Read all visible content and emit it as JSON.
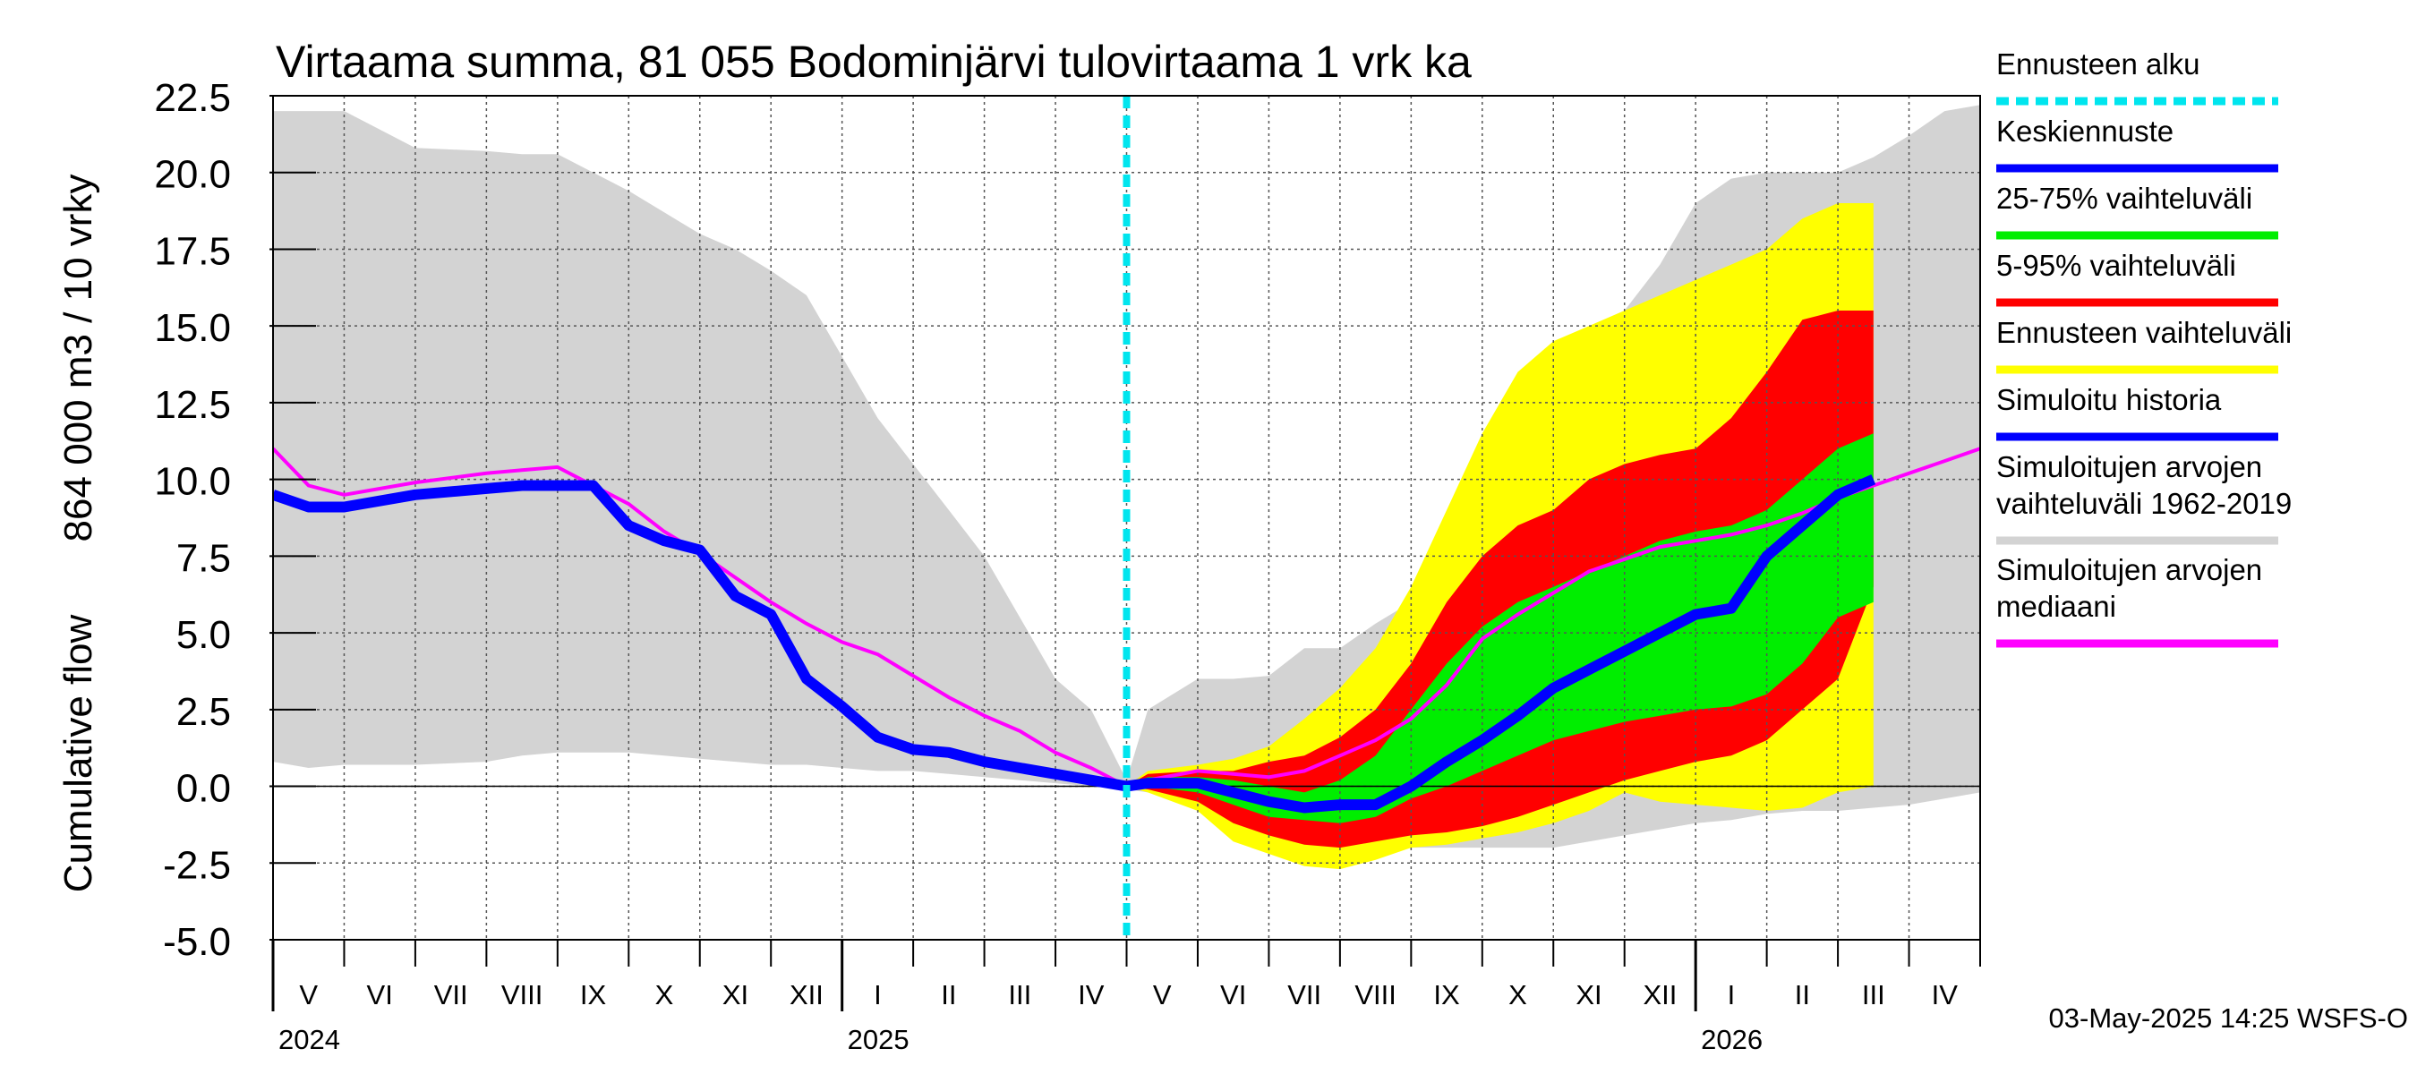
{
  "chart_data": {
    "type": "area",
    "title": "Virtaama summa, 81 055 Bodominjärvi tulovirtaama 1 vrk ka",
    "ylabel_top": "864 000 m3 / 10 vrky",
    "ylabel_bottom": "Cumulative flow",
    "ylim": [
      -5.0,
      22.5
    ],
    "yticks": [
      "22.5",
      "20.0",
      "17.5",
      "15.0",
      "12.5",
      "10.0",
      "7.5",
      "5.0",
      "2.5",
      "0.0",
      "-2.5",
      "-5.0"
    ],
    "month_labels": [
      "V",
      "VI",
      "VII",
      "VIII",
      "IX",
      "X",
      "XI",
      "XII",
      "I",
      "II",
      "III",
      "IV",
      "V",
      "VI",
      "VII",
      "VIII",
      "IX",
      "X",
      "XI",
      "XII",
      "I",
      "II",
      "III",
      "IV"
    ],
    "year_labels": [
      "2024",
      "2025",
      "2026"
    ],
    "footer": "03-May-2025 14:25 WSFS-O",
    "forecast_start_month": 12,
    "grid": true,
    "legend": [
      {
        "label": "Ennusteen alku",
        "color": "#00e5ee",
        "style": "dashed"
      },
      {
        "label": "Keskiennuste",
        "color": "#0000ff"
      },
      {
        "label": "25-75% vaihteluväli",
        "color": "#00ee00"
      },
      {
        "label": "5-95% vaihteluväli",
        "color": "#ff0000"
      },
      {
        "label": "Ennusteen vaihteluväli",
        "color": "#ffff00"
      },
      {
        "label": "Simuloitu historia",
        "color": "#0000ff"
      },
      {
        "label": "Simuloitujen arvojen vaihteluväli 1962-2019",
        "color": "#d3d3d3"
      },
      {
        "label": "Simuloitujen arvojen mediaani",
        "color": "#ff00ff"
      }
    ],
    "x_months": [
      0,
      0.5,
      1,
      2,
      3,
      3.5,
      4,
      4.5,
      5,
      5.5,
      6,
      6.5,
      7,
      7.5,
      8,
      8.5,
      9,
      9.5,
      10,
      10.5,
      11,
      11.5,
      12,
      12.3,
      13,
      13.5,
      14,
      14.5,
      15,
      15.5,
      16,
      16.5,
      17,
      17.5,
      18,
      18.5,
      19,
      19.5,
      20,
      20.5,
      21,
      21.5,
      22,
      22.5,
      23,
      23.5,
      24
    ],
    "history_band_upper": [
      22.0,
      22.0,
      22.0,
      20.8,
      20.7,
      20.6,
      20.6,
      20.0,
      19.4,
      18.7,
      18.0,
      17.5,
      16.8,
      16.0,
      14.0,
      12.0,
      10.5,
      9.0,
      7.5,
      5.5,
      3.5,
      2.5,
      0.2,
      2.5,
      3.5,
      3.5,
      3.6,
      4.5,
      4.5,
      5.3,
      6.0,
      7.0,
      8.5,
      11.0,
      13.5,
      14.2,
      15.5,
      17.0,
      19.0,
      19.8,
      20.0,
      20.0,
      20.0,
      20.5,
      21.2,
      22.0,
      22.2
    ],
    "history_band_lower": [
      0.8,
      0.6,
      0.7,
      0.7,
      0.8,
      1.0,
      1.1,
      1.1,
      1.1,
      1.0,
      0.9,
      0.8,
      0.7,
      0.7,
      0.6,
      0.5,
      0.5,
      0.4,
      0.3,
      0.2,
      0.1,
      0.0,
      -0.1,
      -0.2,
      -0.5,
      -0.9,
      -1.3,
      -1.6,
      -1.8,
      -1.9,
      -2.0,
      -2.0,
      -2.0,
      -2.0,
      -2.0,
      -1.8,
      -1.6,
      -1.4,
      -1.2,
      -1.1,
      -0.9,
      -0.8,
      -0.8,
      -0.7,
      -0.6,
      -0.4,
      -0.2
    ],
    "history_median": [
      11.0,
      9.8,
      9.5,
      9.9,
      10.2,
      10.3,
      10.4,
      9.8,
      9.2,
      8.3,
      7.6,
      6.8,
      6.0,
      5.3,
      4.7,
      4.3,
      3.6,
      2.9,
      2.3,
      1.8,
      1.1,
      0.6,
      0.0,
      0.2,
      0.5,
      0.4,
      0.3,
      0.5,
      1.0,
      1.5,
      2.2,
      3.3,
      4.8,
      5.6,
      6.3,
      7.0,
      7.4,
      7.8,
      8.0,
      8.2,
      8.5,
      8.9,
      9.4,
      9.8,
      10.2,
      10.6,
      11.0
    ],
    "simulated_history": [
      9.5,
      9.1,
      9.1,
      9.5,
      9.7,
      9.8,
      9.8,
      9.8,
      8.5,
      8.0,
      7.7,
      6.2,
      5.6,
      3.5,
      2.6,
      1.6,
      1.2,
      1.1,
      0.8,
      0.6,
      0.4,
      0.2,
      0.0
    ],
    "forecast_mean": [
      null,
      null,
      null,
      null,
      null,
      null,
      null,
      null,
      null,
      null,
      null,
      null,
      null,
      null,
      null,
      null,
      null,
      null,
      null,
      null,
      null,
      null,
      0.0,
      0.1,
      0.1,
      -0.2,
      -0.5,
      -0.7,
      -0.6,
      -0.6,
      0.0,
      0.8,
      1.5,
      2.3,
      3.2,
      3.8,
      4.4,
      5.0,
      5.6,
      5.8,
      7.5,
      8.5,
      9.5,
      10.0
    ],
    "forecast_p25": [
      null,
      null,
      null,
      null,
      null,
      null,
      null,
      null,
      null,
      null,
      null,
      null,
      null,
      null,
      null,
      null,
      null,
      null,
      null,
      null,
      null,
      null,
      0.0,
      0.0,
      -0.2,
      -0.6,
      -1.0,
      -1.1,
      -1.2,
      -1.0,
      -0.4,
      0.0,
      0.5,
      1.0,
      1.5,
      1.8,
      2.1,
      2.3,
      2.5,
      2.6,
      3.0,
      4.0,
      5.5,
      6.0
    ],
    "forecast_p75": [
      null,
      null,
      null,
      null,
      null,
      null,
      null,
      null,
      null,
      null,
      null,
      null,
      null,
      null,
      null,
      null,
      null,
      null,
      null,
      null,
      null,
      null,
      0.0,
      0.3,
      0.3,
      0.2,
      0.0,
      -0.2,
      0.2,
      1.0,
      2.5,
      4.0,
      5.2,
      6.0,
      6.5,
      7.0,
      7.5,
      8.0,
      8.3,
      8.5,
      9.0,
      10.0,
      11.0,
      11.5
    ],
    "forecast_p5": [
      null,
      null,
      null,
      null,
      null,
      null,
      null,
      null,
      null,
      null,
      null,
      null,
      null,
      null,
      null,
      null,
      null,
      null,
      null,
      null,
      null,
      null,
      0.0,
      -0.1,
      -0.5,
      -1.2,
      -1.6,
      -1.9,
      -2.0,
      -1.8,
      -1.6,
      -1.5,
      -1.3,
      -1.0,
      -0.6,
      -0.2,
      0.2,
      0.5,
      0.8,
      1.0,
      1.5,
      2.5,
      3.5,
      6.5
    ],
    "forecast_p95": [
      null,
      null,
      null,
      null,
      null,
      null,
      null,
      null,
      null,
      null,
      null,
      null,
      null,
      null,
      null,
      null,
      null,
      null,
      null,
      null,
      null,
      null,
      0.0,
      0.4,
      0.5,
      0.5,
      0.8,
      1.0,
      1.6,
      2.5,
      4.0,
      6.0,
      7.5,
      8.5,
      9.0,
      10.0,
      10.5,
      10.8,
      11.0,
      12.0,
      13.5,
      15.2,
      15.5,
      15.5
    ],
    "forecast_min": [
      null,
      null,
      null,
      null,
      null,
      null,
      null,
      null,
      null,
      null,
      null,
      null,
      null,
      null,
      null,
      null,
      null,
      null,
      null,
      null,
      null,
      null,
      0.0,
      -0.2,
      -0.8,
      -1.8,
      -2.2,
      -2.6,
      -2.7,
      -2.4,
      -2.0,
      -1.9,
      -1.7,
      -1.5,
      -1.2,
      -0.8,
      -0.2,
      -0.5,
      -0.6,
      -0.7,
      -0.8,
      -0.7,
      -0.2,
      0.0
    ],
    "forecast_max": [
      null,
      null,
      null,
      null,
      null,
      null,
      null,
      null,
      null,
      null,
      null,
      null,
      null,
      null,
      null,
      null,
      null,
      null,
      null,
      null,
      null,
      null,
      0.0,
      0.5,
      0.7,
      0.9,
      1.3,
      2.2,
      3.2,
      4.5,
      6.5,
      9.0,
      11.5,
      13.5,
      14.5,
      15.0,
      15.5,
      16.0,
      16.5,
      17.0,
      17.5,
      18.5,
      19.0,
      19.0
    ]
  }
}
